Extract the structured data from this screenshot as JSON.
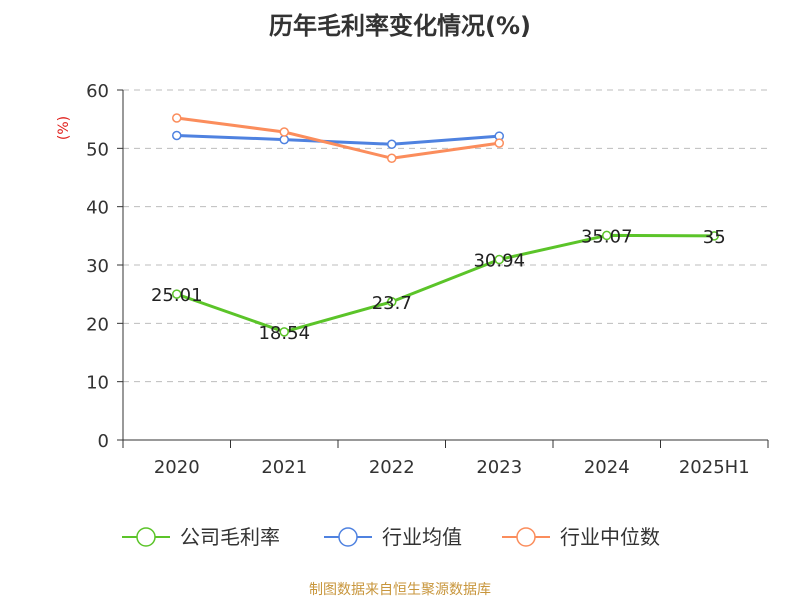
{
  "chart_data": {
    "type": "line",
    "title": "历年毛利率变化情况(%)",
    "unit_label": "(%)",
    "categories": [
      "2020",
      "2021",
      "2022",
      "2023",
      "2024",
      "2025H1"
    ],
    "ylim": [
      0,
      60
    ],
    "yticks": [
      0,
      10,
      20,
      30,
      40,
      50,
      60
    ],
    "grid": "horizontal-dashed",
    "legend_position": "bottom",
    "series": [
      {
        "name": "公司毛利率",
        "color": "#5bc429",
        "values": [
          25.01,
          18.54,
          23.7,
          30.94,
          35.07,
          35
        ],
        "labels": [
          "25.01",
          "18.54",
          "23.7",
          "30.94",
          "35.07",
          "35"
        ]
      },
      {
        "name": "行业均值",
        "color": "#4f82e0",
        "values": [
          52.2,
          51.5,
          50.7,
          52.1,
          null,
          null
        ]
      },
      {
        "name": "行业中位数",
        "color": "#fb8d5c",
        "values": [
          55.2,
          52.8,
          48.3,
          50.9,
          null,
          null
        ]
      }
    ]
  },
  "source": "制图数据来自恒生聚源数据库"
}
